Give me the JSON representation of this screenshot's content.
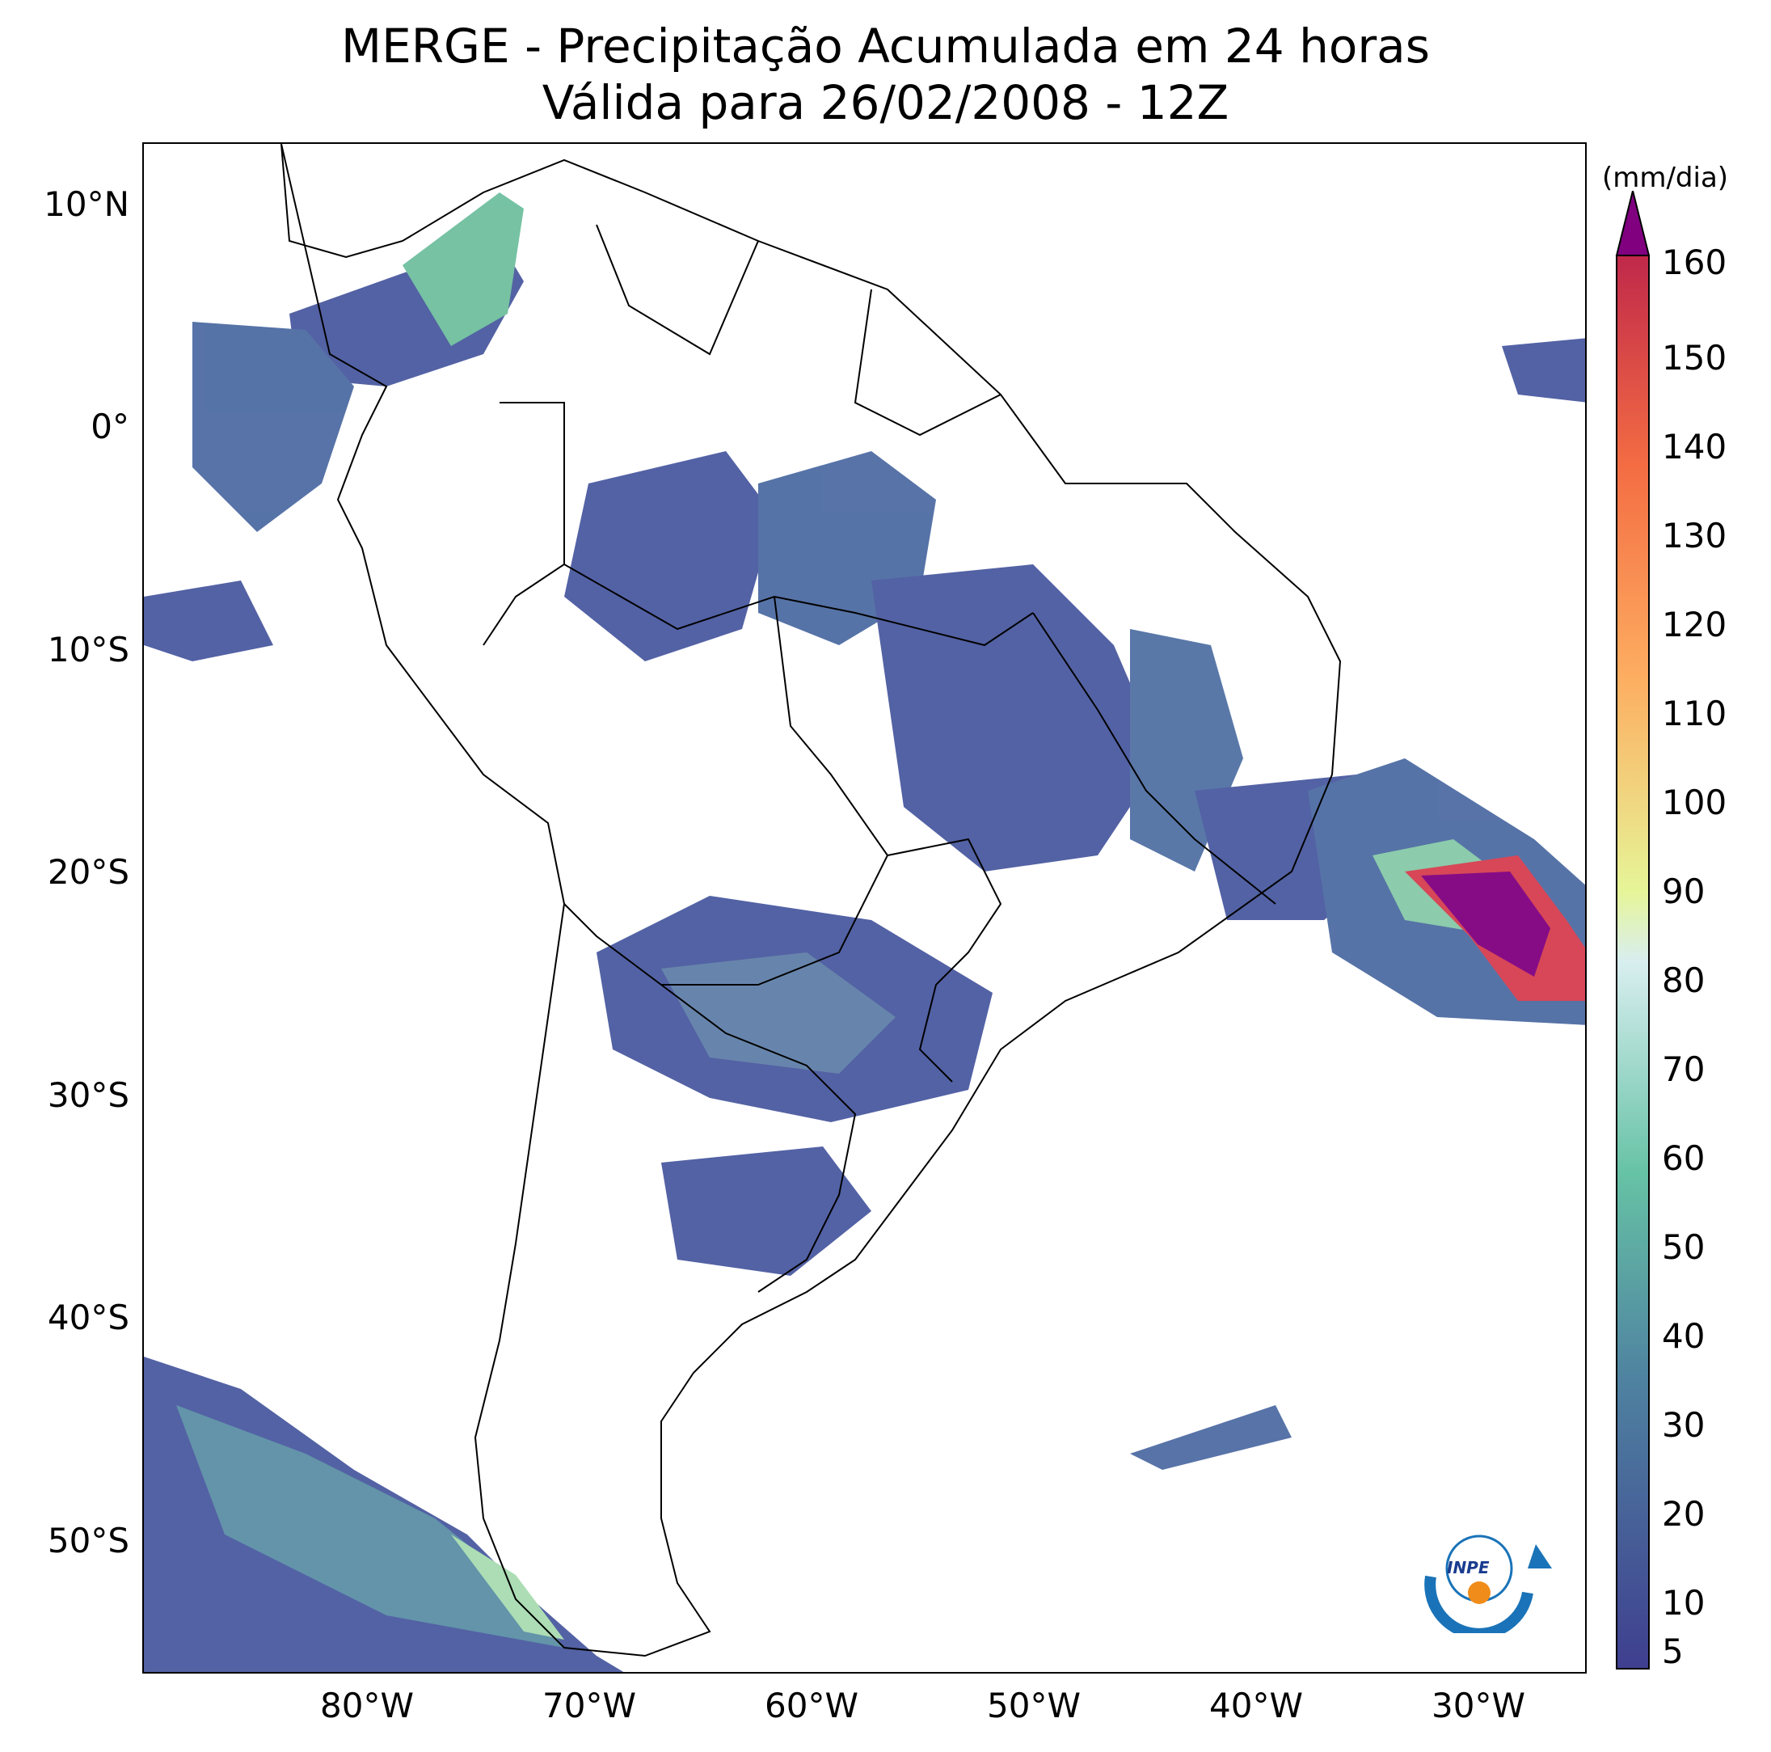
{
  "title": {
    "line1": "MERGE - Precipitação Acumulada em 24 horas",
    "line2": "Válida para 26/02/2008 - 12Z"
  },
  "map": {
    "extent": {
      "lon": [
        -90,
        -25
      ],
      "lat": [
        -56,
        13
      ]
    },
    "lat_labels": [
      "10°N",
      "0°",
      "10°S",
      "20°S",
      "30°S",
      "40°S",
      "50°S"
    ],
    "lon_labels": [
      "80°W",
      "70°W",
      "60°W",
      "50°W",
      "40°W",
      "30°W"
    ]
  },
  "colorbar": {
    "unit": "(mm/dia)",
    "ticks": [
      "5",
      "10",
      "20",
      "30",
      "40",
      "50",
      "60",
      "70",
      "80",
      "90",
      "100",
      "110",
      "120",
      "130",
      "140",
      "150",
      "160"
    ],
    "levels": [
      5,
      10,
      20,
      30,
      40,
      50,
      60,
      70,
      80,
      90,
      100,
      110,
      120,
      130,
      140,
      150,
      160
    ],
    "extend": "max",
    "colormap": "Spectral_r",
    "colors": {
      "low": "#3f3f8f",
      "mid_low": "#4e80a0",
      "mid": "#66c2a5",
      "mid_high": "#e6f598",
      "high": "#fdae61",
      "very_high": "#d53e4f",
      "max": "#800080"
    }
  },
  "logo": {
    "label": "INPE"
  }
}
